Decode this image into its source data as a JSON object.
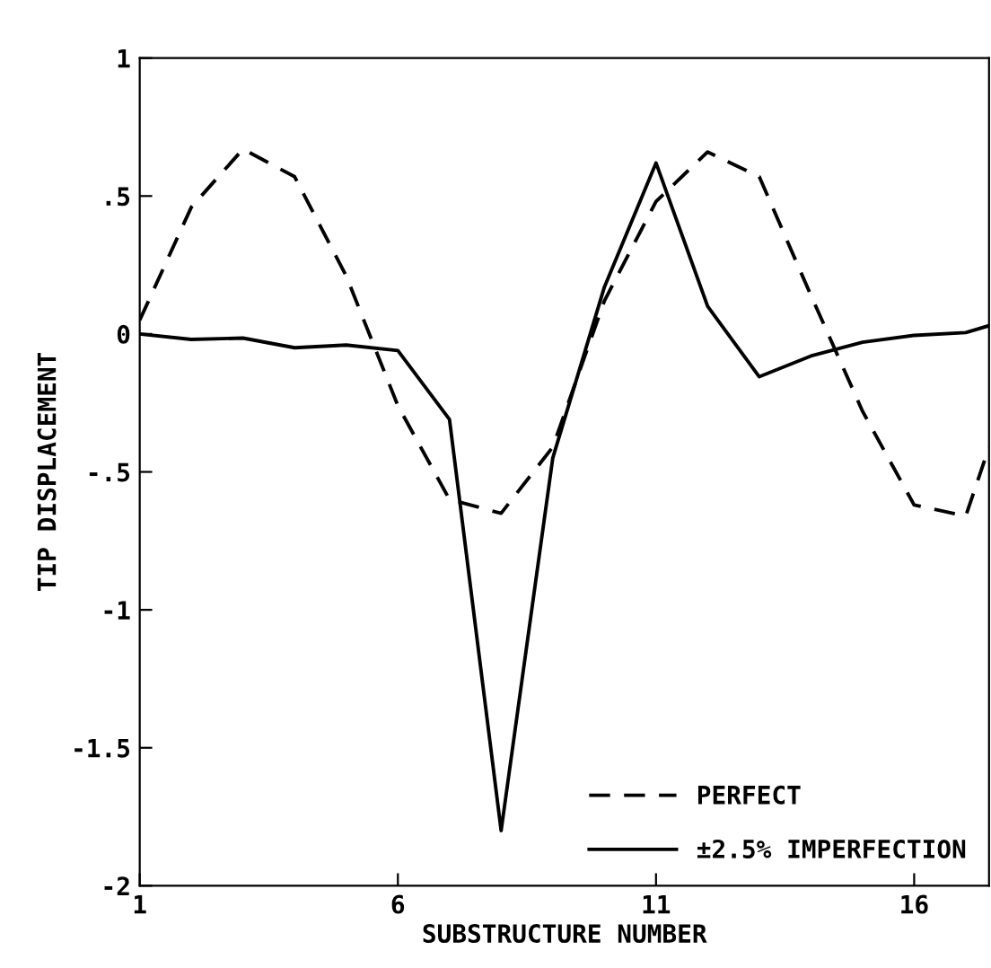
{
  "chart_data": {
    "type": "line",
    "xlabel": "SUBSTRUCTURE NUMBER",
    "ylabel": "TIP DISPLACEMENT",
    "series": [
      {
        "name": "PERFECT",
        "color": "#000000",
        "line_style": "dashed",
        "x": [
          1,
          2,
          3,
          4,
          5,
          6,
          7,
          8,
          9,
          10,
          11,
          12,
          13,
          14,
          15,
          16,
          17,
          17.45
        ],
        "values": [
          0.05,
          0.46,
          0.67,
          0.57,
          0.21,
          -0.26,
          -0.6,
          -0.65,
          -0.41,
          0.12,
          0.48,
          0.66,
          0.57,
          0.14,
          -0.28,
          -0.62,
          -0.66,
          -0.41
        ]
      },
      {
        "name": "±2.5% IMPERFECTION",
        "color": "#000000",
        "line_style": "solid",
        "x": [
          1,
          2,
          3,
          4,
          5,
          6,
          7,
          8,
          9,
          10,
          11,
          12,
          13,
          14,
          15,
          16,
          17,
          17.45
        ],
        "values": [
          0.0,
          -0.02,
          -0.015,
          -0.05,
          -0.04,
          -0.06,
          -0.31,
          -1.8,
          -0.45,
          0.17,
          0.62,
          0.1,
          -0.155,
          -0.08,
          -0.03,
          -0.005,
          0.005,
          0.03
        ]
      }
    ],
    "xlim": [
      1,
      17.45
    ],
    "xticks": [
      1,
      6,
      11,
      16
    ],
    "ylim": [
      -2,
      1
    ],
    "yticks": [
      {
        "value": -2,
        "label": "-2"
      },
      {
        "value": -1.5,
        "label": "-1.5"
      },
      {
        "value": -1,
        "label": "-1"
      },
      {
        "value": -0.5,
        "label": "-.5"
      },
      {
        "value": 0,
        "label": "0"
      },
      {
        "value": 0.5,
        "label": ".5"
      },
      {
        "value": 1,
        "label": "1"
      }
    ],
    "grid": false,
    "legend": "bottom right"
  }
}
